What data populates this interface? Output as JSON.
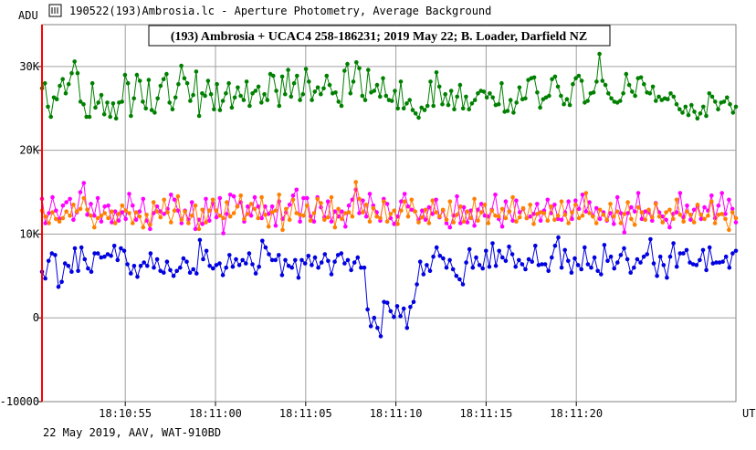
{
  "window": {
    "title": "190522(193)Ambrosia.lc - Aperture Photometry, Average Background"
  },
  "chart_data": {
    "type": "line",
    "title": "(193) Ambrosia + UCAC4 258-186231; 2019 May 22; B. Loader, Darfield NZ",
    "ylabel": "ADU",
    "xlabel": "UT",
    "footer": "22 May 2019, AAV, WAT-910BD",
    "ylim": [
      -10000,
      35000
    ],
    "xlim": [
      0,
      100
    ],
    "y_ticks": [
      {
        "value": 30000,
        "label": "30K"
      },
      {
        "value": 20000,
        "label": "20K"
      },
      {
        "value": 10000,
        "label": "10K"
      },
      {
        "value": 0,
        "label": "0"
      },
      {
        "value": -10000,
        "label": "-10000"
      }
    ],
    "x_ticks": [
      {
        "value": 12,
        "label": "18:10:55"
      },
      {
        "value": 25,
        "label": "18:11:00"
      },
      {
        "value": 38,
        "label": "18:11:05"
      },
      {
        "value": 51,
        "label": "18:11:10"
      },
      {
        "value": 64,
        "label": "18:11:15"
      },
      {
        "value": 77,
        "label": "18:11:20"
      }
    ],
    "grid": true,
    "marker_line_x": 0,
    "series": [
      {
        "color": "#008000",
        "values": [
          27400,
          28000,
          25200,
          24000,
          26300,
          26100,
          27700,
          28500,
          26800,
          27900,
          29200,
          30600,
          29200,
          25800,
          25500,
          24000,
          24000,
          28000,
          25100,
          25700,
          26600,
          24300,
          25700,
          24000,
          25600,
          23800,
          25700,
          25800,
          29000,
          28000,
          24100,
          26200,
          29000,
          28300,
          25800,
          25000,
          28400,
          24800,
          24500,
          26200,
          27700,
          28500,
          29100,
          25700,
          24900,
          26300,
          27900,
          30100,
          28600,
          28000,
          25900,
          26600,
          29400,
          24100,
          26800,
          26500,
          28300,
          26700,
          24900,
          27900,
          24800,
          25900,
          26800,
          28000,
          25100,
          26300,
          27500,
          26500,
          26000,
          28200,
          25300,
          26800,
          27100,
          27600,
          25700,
          26700,
          26000,
          29100,
          28900,
          27100,
          25300,
          28800,
          26700,
          29600,
          26400,
          28000,
          28900,
          26000,
          26700,
          29700,
          28200,
          26000,
          27000,
          27500,
          26700,
          27400,
          28900,
          27800,
          26800,
          26900,
          25800,
          25300,
          29500,
          30300,
          26800,
          28200,
          30500,
          29800,
          26500,
          26000,
          29600,
          26900,
          27100,
          27800,
          26400,
          28600,
          26500,
          26000,
          25900,
          27100,
          25000,
          28200,
          25000,
          25600,
          26000,
          24800,
          24400,
          23900,
          25100,
          24800,
          25300,
          28200,
          25300,
          29300,
          27600,
          25500,
          26700,
          25400,
          27100,
          24900,
          26400,
          27800,
          25000,
          26400,
          24900,
          25600,
          26000,
          26800,
          27100,
          27000,
          26300,
          26800,
          26300,
          25400,
          25500,
          28000,
          24600,
          24700,
          26000,
          24500,
          25700,
          27500,
          26100,
          26200,
          28400,
          28600,
          28700,
          26900,
          25100,
          26100,
          26300,
          26500,
          28500,
          28800,
          27600,
          26500,
          25500,
          26100,
          25400,
          27900,
          28600,
          28900,
          28300,
          25700,
          25900,
          26800,
          26900,
          28200,
          31500,
          28300,
          27800,
          26800,
          26200,
          25800,
          25700,
          25900,
          26800,
          29100,
          27800,
          27000,
          26500,
          28600,
          28700,
          27900,
          26900,
          26800,
          27600,
          25900,
          26400,
          26000,
          26200,
          26100,
          26800,
          26400,
          25500,
          24900,
          24500,
          25200,
          24200,
          25400,
          24600,
          23800,
          24400,
          25200,
          24100,
          26800,
          26400,
          25800,
          24900,
          25700,
          25800,
          26300,
          25500,
          24500,
          25200
        ]
      },
      {
        "color": "#0000e0",
        "values": [
          5500,
          4700,
          6800,
          7700,
          7500,
          3700,
          4300,
          6500,
          6200,
          5500,
          8300,
          5600,
          8400,
          7000,
          5900,
          5500,
          7700,
          7700,
          7200,
          7300,
          7600,
          7400,
          8600,
          6900,
          8300,
          8000,
          6400,
          5300,
          6200,
          4900,
          6200,
          6600,
          6200,
          7700,
          6000,
          7000,
          5600,
          5400,
          6700,
          5700,
          5000,
          5600,
          6000,
          7100,
          6700,
          5400,
          5800,
          5300,
          9300,
          7000,
          8000,
          6200,
          5900,
          6300,
          6500,
          5100,
          6000,
          7500,
          6100,
          7000,
          6300,
          6900,
          6500,
          7700,
          6400,
          5300,
          6100,
          9200,
          8400,
          7600,
          6900,
          6900,
          7500,
          5100,
          6900,
          6200,
          6000,
          6900,
          4800,
          6900,
          6500,
          7400,
          6300,
          7200,
          6000,
          6600,
          7600,
          6800,
          5200,
          6700,
          7500,
          7700,
          6500,
          6900,
          5700,
          6600,
          7200,
          6000,
          6000,
          1000,
          -1000,
          0,
          -1200,
          -2200,
          1900,
          1800,
          800,
          100,
          1400,
          200,
          1100,
          -1200,
          1300,
          1900,
          4000,
          6700,
          5200,
          6300,
          5600,
          7300,
          8400,
          7400,
          7100,
          6000,
          6900,
          5800,
          5000,
          4600,
          4000,
          6600,
          8200,
          6000,
          7200,
          6300,
          5900,
          8000,
          6100,
          8900,
          6200,
          8000,
          7200,
          6800,
          8500,
          7600,
          6100,
          6900,
          6400,
          5800,
          7000,
          6700,
          8600,
          6300,
          6400,
          6400,
          5600,
          7200,
          8600,
          9600,
          6000,
          8100,
          6800,
          5400,
          7100,
          6300,
          5800,
          8400,
          6400,
          6000,
          7200,
          5600,
          5200,
          8700,
          6800,
          7300,
          5900,
          6600,
          7500,
          8300,
          7000,
          5400,
          6000,
          7000,
          6600,
          7300,
          7600,
          9400,
          6500,
          5000,
          7300,
          6300,
          4800,
          7300,
          8900,
          6100,
          7700,
          7700,
          8100,
          6600,
          6400,
          6300,
          6900,
          8100,
          5700,
          8400,
          6500,
          6600,
          6600,
          6700,
          7300,
          6000,
          7700,
          8000
        ]
      },
      {
        "color": "#ff00ff",
        "values": [
          14200,
          11300,
          12500,
          14400,
          12800,
          11800,
          13400,
          13800,
          14200,
          11700,
          12600,
          15000,
          16100,
          12300,
          13600,
          12200,
          14300,
          11500,
          13300,
          13400,
          11400,
          12700,
          11600,
          12600,
          11800,
          14800,
          13400,
          11700,
          12700,
          14200,
          11600,
          10600,
          12500,
          13300,
          12700,
          12400,
          13000,
          14700,
          14100,
          12800,
          11300,
          12800,
          11700,
          13800,
          10600,
          11700,
          11200,
          14200,
          11600,
          13700,
          12000,
          14300,
          10100,
          12400,
          14700,
          14500,
          13300,
          13800,
          11500,
          13300,
          12200,
          14400,
          13300,
          11900,
          13300,
          12400,
          13300,
          11000,
          13900,
          11800,
          12600,
          13500,
          14600,
          15300,
          11500,
          14300,
          14300,
          12100,
          11500,
          14400,
          13200,
          12000,
          13900,
          11500,
          12700,
          12100,
          12700,
          10900,
          13400,
          14100,
          15300,
          12500,
          14000,
          12100,
          14800,
          13400,
          12600,
          11600,
          14200,
          13600,
          11900,
          11200,
          12100,
          13900,
          14800,
          13300,
          12900,
          12700,
          11700,
          12800,
          11700,
          13200,
          12400,
          14100,
          12000,
          12800,
          11300,
          10800,
          12200,
          14500,
          11300,
          13200,
          11400,
          12800,
          11000,
          12900,
          13600,
          12200,
          12100,
          12900,
          14700,
          11800,
          10900,
          13900,
          12700,
          11600,
          14000,
          12600,
          13000,
          11900,
          12100,
          12400,
          13600,
          11600,
          12800,
          14100,
          12500,
          13500,
          11800,
          11700,
          12600,
          13900,
          11800,
          14000,
          13000,
          14700,
          12700,
          13800,
          12200,
          13100,
          11800,
          12600,
          11600,
          12500,
          11200,
          14400,
          12500,
          10200,
          12500,
          13200,
          12700,
          14900,
          11800,
          12700,
          12600,
          11600,
          13700,
          12600,
          12100,
          11700,
          10800,
          12400,
          12600,
          14900,
          12000,
          13400,
          11700,
          12900,
          13300,
          11800,
          13200,
          12800,
          14600,
          11900,
          13400,
          14900,
          12400,
          14100,
          13000,
          11400
        ]
      },
      {
        "color": "#ff8000",
        "values": [
          12800,
          12100,
          11300,
          12600,
          11800,
          11500,
          11900,
          12700,
          12200,
          13500,
          12700,
          13000,
          14300,
          12900,
          12200,
          10800,
          11900,
          12200,
          12500,
          11900,
          12700,
          11300,
          12400,
          13400,
          12800,
          12500,
          11300,
          12600,
          12100,
          10800,
          12300,
          11100,
          13800,
          12700,
          12000,
          14100,
          12600,
          11400,
          12800,
          14500,
          11700,
          12700,
          11300,
          12200,
          13400,
          10600,
          12900,
          11400,
          12800,
          14100,
          12800,
          12200,
          11900,
          13800,
          12100,
          12500,
          13300,
          14600,
          11800,
          12400,
          13600,
          13000,
          11900,
          14400,
          12300,
          10900,
          12600,
          12800,
          14700,
          10500,
          13000,
          11700,
          14100,
          12500,
          12300,
          12200,
          13400,
          11600,
          12500,
          14200,
          13700,
          11700,
          12000,
          14400,
          10800,
          13000,
          11800,
          12500,
          12600,
          12100,
          16200,
          14200,
          12600,
          13500,
          11500,
          13100,
          12100,
          11900,
          13900,
          11500,
          12400,
          12800,
          11200,
          12800,
          13900,
          12100,
          14100,
          12700,
          11400,
          12000,
          12900,
          11300,
          14000,
          12600,
          12100,
          12900,
          11700,
          13900,
          11400,
          12300,
          13300,
          11500,
          12700,
          11900,
          14200,
          11600,
          12600,
          13500,
          11300,
          12800,
          12200,
          12100,
          13000,
          11900,
          12700,
          14400,
          11500,
          12000,
          13100,
          11900,
          13500,
          11200,
          12400,
          12600,
          12500,
          11600,
          13300,
          11700,
          12200,
          13900,
          12300,
          11300,
          12600,
          13500,
          11900,
          12200,
          14900,
          12500,
          12100,
          11300,
          12900,
          12300,
          11700,
          13600,
          12100,
          12700,
          11300,
          12400,
          13800,
          11800,
          11100,
          13200,
          12600,
          11700,
          12900,
          12000,
          13600,
          12100,
          11400,
          12600,
          12900,
          11800,
          14100,
          12300,
          11500,
          12700,
          12300,
          11400,
          13500,
          12300,
          11800,
          12200,
          13900,
          11300,
          12300,
          12400,
          11800,
          10500,
          12600,
          11900
        ]
      }
    ]
  }
}
